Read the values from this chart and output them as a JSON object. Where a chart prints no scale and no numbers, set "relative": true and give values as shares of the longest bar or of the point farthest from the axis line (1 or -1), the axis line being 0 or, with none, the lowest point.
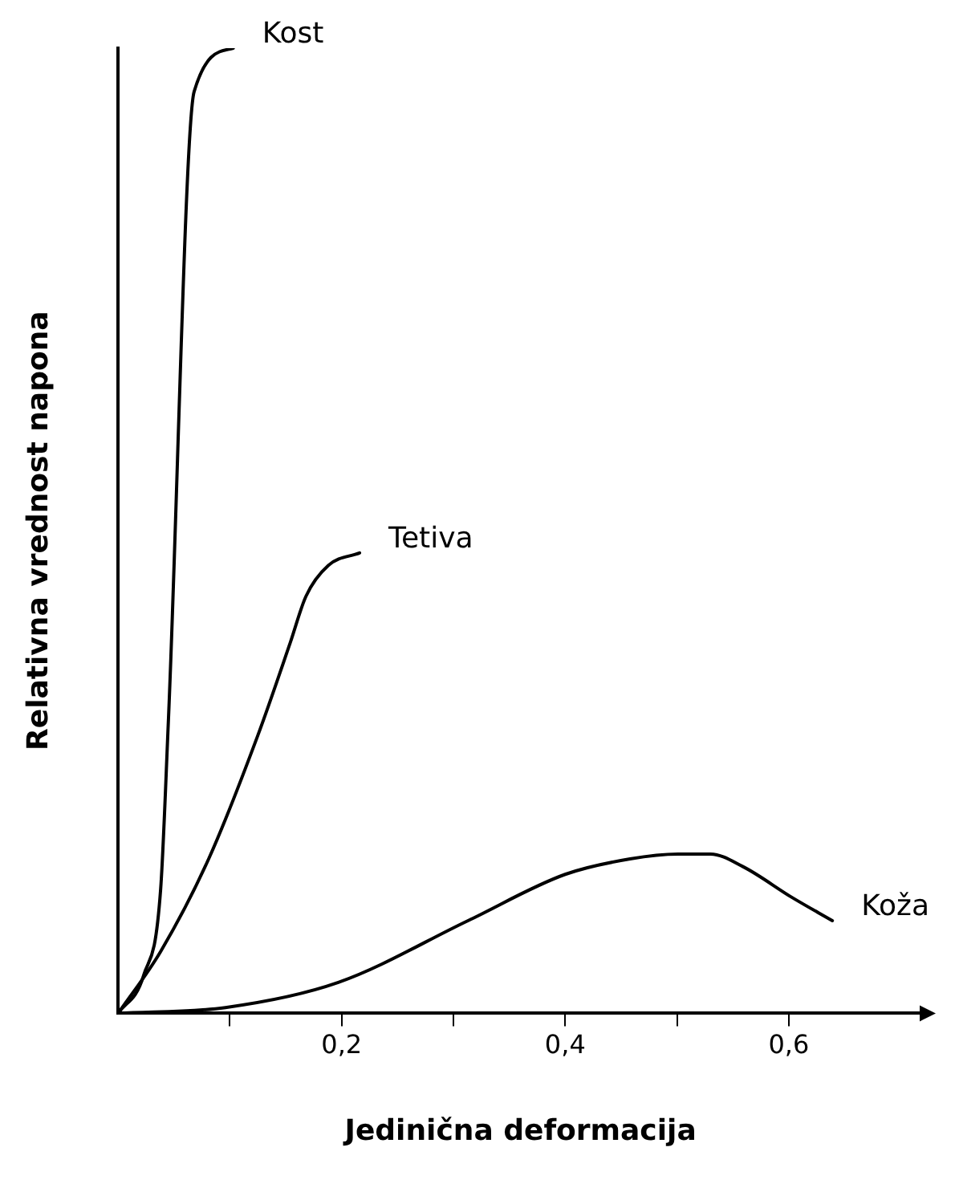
{
  "chart_data": {
    "type": "line",
    "relative": true,
    "xlabel": "Jedinična deformacija",
    "ylabel": "Relativna vrednost napona",
    "xlim": [
      0,
      0.72
    ],
    "xticks": [
      {
        "value": 0.1,
        "label": null
      },
      {
        "value": 0.2,
        "label": "0,2"
      },
      {
        "value": 0.3,
        "label": null
      },
      {
        "value": 0.4,
        "label": "0,4"
      },
      {
        "value": 0.5,
        "label": null
      },
      {
        "value": 0.6,
        "label": "0,6"
      }
    ],
    "grid": false,
    "legend": false,
    "marker": "none",
    "line_style": "solid",
    "series": [
      {
        "name": "Kost",
        "color": "#000000",
        "x": [
          0,
          0.023,
          0.038,
          0.045,
          0.068,
          0.103
        ],
        "values": [
          0,
          0.04,
          0.128,
          0.304,
          0.955,
          1
        ]
      },
      {
        "name": "Tetiva",
        "color": "#000000",
        "x": [
          0,
          0.038,
          0.081,
          0.125,
          0.154,
          0.168,
          0.188,
          0.216
        ],
        "values": [
          0,
          0.064,
          0.16,
          0.288,
          0.384,
          0.432,
          0.464,
          0.477
        ]
      },
      {
        "name": "Koža",
        "color": "#000000",
        "x": [
          0,
          0.096,
          0.197,
          0.313,
          0.4,
          0.458,
          0.501,
          0.53,
          0.559,
          0.603,
          0.639
        ],
        "values": [
          0,
          0.006,
          0.032,
          0.096,
          0.144,
          0.16,
          0.165,
          0.165,
          0.152,
          0.12,
          0.096
        ]
      }
    ]
  }
}
